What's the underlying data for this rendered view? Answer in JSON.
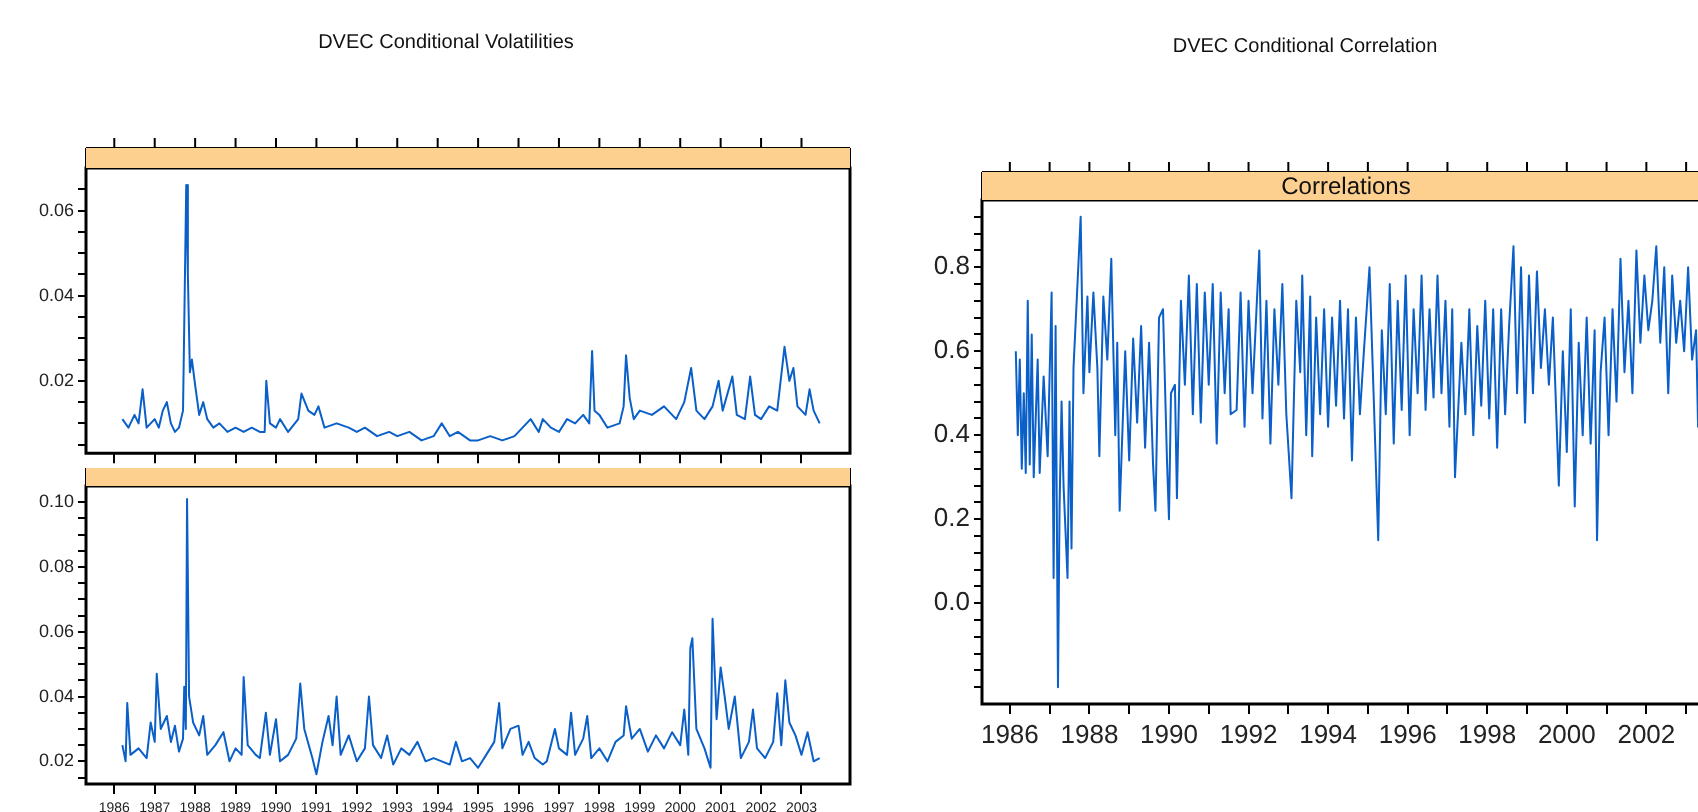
{
  "chart_data": [
    {
      "type": "line",
      "title": "DVEC Conditional Volatilities",
      "tick_labels": "y",
      "xlim": [
        1985.3,
        2004.2
      ],
      "xticks": [
        1986,
        1987,
        1988,
        1989,
        1990,
        1991,
        1992,
        1993,
        1994,
        1995,
        1996,
        1997,
        1998,
        1999,
        2000,
        2001,
        2002,
        2003
      ],
      "ylim": [
        0.003,
        0.07
      ],
      "yticks": [
        {
          "value": 0.005,
          "label": null
        },
        {
          "value": 0.01,
          "label": null
        },
        {
          "value": 0.015,
          "label": null
        },
        0.02,
        {
          "value": 0.025,
          "label": null
        },
        {
          "value": 0.03,
          "label": null
        },
        {
          "value": 0.035,
          "label": null
        },
        0.04,
        {
          "value": 0.045,
          "label": null
        },
        {
          "value": 0.05,
          "label": null
        },
        {
          "value": 0.055,
          "label": null
        },
        0.06,
        {
          "value": 0.065,
          "label": null
        }
      ],
      "series": [
        {
          "color": "#0a5fc8",
          "x": [
            1986.2,
            1986.35,
            1986.5,
            1986.6,
            1986.7,
            1986.8,
            1987.0,
            1987.1,
            1987.2,
            1987.3,
            1987.4,
            1987.5,
            1987.6,
            1987.7,
            1987.78,
            1987.82,
            1987.87,
            1987.92,
            1988.0,
            1988.1,
            1988.2,
            1988.3,
            1988.45,
            1988.6,
            1988.8,
            1989.0,
            1989.2,
            1989.4,
            1989.6,
            1989.72,
            1989.76,
            1989.85,
            1990.0,
            1990.1,
            1990.3,
            1990.55,
            1990.63,
            1990.8,
            1990.95,
            1991.05,
            1991.2,
            1991.5,
            1991.8,
            1992.0,
            1992.2,
            1992.5,
            1992.8,
            1993.0,
            1993.3,
            1993.6,
            1993.9,
            1994.1,
            1994.3,
            1994.5,
            1994.8,
            1995.0,
            1995.3,
            1995.6,
            1995.9,
            1996.1,
            1996.3,
            1996.5,
            1996.6,
            1996.8,
            1997.0,
            1997.2,
            1997.4,
            1997.6,
            1997.75,
            1997.82,
            1997.88,
            1998.0,
            1998.2,
            1998.5,
            1998.6,
            1998.66,
            1998.75,
            1998.85,
            1999.0,
            1999.3,
            1999.6,
            1999.9,
            2000.1,
            2000.27,
            2000.4,
            2000.6,
            2000.8,
            2000.95,
            2001.05,
            2001.29,
            2001.4,
            2001.6,
            2001.73,
            2001.85,
            2002.0,
            2002.2,
            2002.4,
            2002.58,
            2002.7,
            2002.8,
            2002.9,
            2003.0,
            2003.1,
            2003.2,
            2003.3,
            2003.45
          ],
          "values": [
            0.011,
            0.009,
            0.012,
            0.01,
            0.018,
            0.009,
            0.011,
            0.009,
            0.013,
            0.015,
            0.01,
            0.008,
            0.009,
            0.013,
            0.066,
            0.045,
            0.022,
            0.025,
            0.019,
            0.012,
            0.015,
            0.011,
            0.009,
            0.01,
            0.008,
            0.009,
            0.008,
            0.009,
            0.008,
            0.008,
            0.02,
            0.01,
            0.009,
            0.011,
            0.008,
            0.011,
            0.017,
            0.013,
            0.012,
            0.014,
            0.009,
            0.01,
            0.009,
            0.008,
            0.009,
            0.007,
            0.008,
            0.007,
            0.008,
            0.006,
            0.007,
            0.01,
            0.007,
            0.008,
            0.006,
            0.006,
            0.007,
            0.006,
            0.007,
            0.009,
            0.011,
            0.008,
            0.011,
            0.009,
            0.008,
            0.011,
            0.01,
            0.012,
            0.01,
            0.027,
            0.013,
            0.012,
            0.009,
            0.01,
            0.014,
            0.026,
            0.016,
            0.011,
            0.013,
            0.012,
            0.014,
            0.011,
            0.015,
            0.023,
            0.013,
            0.011,
            0.014,
            0.02,
            0.013,
            0.021,
            0.012,
            0.011,
            0.021,
            0.012,
            0.011,
            0.014,
            0.013,
            0.028,
            0.02,
            0.023,
            0.014,
            0.013,
            0.012,
            0.018,
            0.013,
            0.01
          ]
        }
      ]
    },
    {
      "type": "line",
      "xlim": [
        1985.3,
        2004.2
      ],
      "xticks": [
        1986,
        1987,
        1988,
        1989,
        1990,
        1991,
        1992,
        1993,
        1994,
        1995,
        1996,
        1997,
        1998,
        1999,
        2000,
        2001,
        2002,
        2003
      ],
      "ylim": [
        0.013,
        0.105
      ],
      "yticks": [
        {
          "value": 0.015,
          "label": null
        },
        0.02,
        {
          "value": 0.025,
          "label": null
        },
        {
          "value": 0.03,
          "label": null
        },
        {
          "value": 0.035,
          "label": null
        },
        0.04,
        {
          "value": 0.045,
          "label": null
        },
        {
          "value": 0.05,
          "label": null
        },
        {
          "value": 0.055,
          "label": null
        },
        0.06,
        {
          "value": 0.065,
          "label": null
        },
        {
          "value": 0.07,
          "label": null
        },
        {
          "value": 0.075,
          "label": null
        },
        0.08,
        {
          "value": 0.085,
          "label": null
        },
        {
          "value": 0.09,
          "label": null
        },
        {
          "value": 0.095,
          "label": null
        },
        {
          "value": 0.1,
          "label": "0.10"
        }
      ],
      "series": [
        {
          "color": "#0a5fc8",
          "x": [
            1986.2,
            1986.28,
            1986.32,
            1986.4,
            1986.6,
            1986.8,
            1986.9,
            1987.0,
            1987.05,
            1987.15,
            1987.3,
            1987.4,
            1987.5,
            1987.6,
            1987.7,
            1987.73,
            1987.77,
            1987.8,
            1987.85,
            1987.95,
            1988.1,
            1988.2,
            1988.3,
            1988.5,
            1988.7,
            1988.85,
            1989.0,
            1989.15,
            1989.2,
            1989.3,
            1989.5,
            1989.6,
            1989.75,
            1989.85,
            1990.0,
            1990.1,
            1990.3,
            1990.5,
            1990.6,
            1990.7,
            1990.9,
            1991.0,
            1991.15,
            1991.3,
            1991.4,
            1991.5,
            1991.6,
            1991.8,
            1992.0,
            1992.2,
            1992.3,
            1992.4,
            1992.6,
            1992.75,
            1992.9,
            1993.1,
            1993.3,
            1993.5,
            1993.7,
            1993.9,
            1994.1,
            1994.3,
            1994.45,
            1994.6,
            1994.8,
            1995.0,
            1995.2,
            1995.4,
            1995.52,
            1995.6,
            1995.8,
            1996.0,
            1996.1,
            1996.25,
            1996.4,
            1996.6,
            1996.7,
            1996.9,
            1997.0,
            1997.2,
            1997.3,
            1997.4,
            1997.6,
            1997.7,
            1997.8,
            1998.0,
            1998.2,
            1998.4,
            1998.6,
            1998.66,
            1998.8,
            1999.0,
            1999.2,
            1999.4,
            1999.6,
            1999.8,
            2000.0,
            2000.1,
            2000.2,
            2000.25,
            2000.3,
            2000.4,
            2000.6,
            2000.75,
            2000.8,
            2000.9,
            2001.0,
            2001.1,
            2001.2,
            2001.35,
            2001.5,
            2001.7,
            2001.8,
            2001.9,
            2002.1,
            2002.3,
            2002.4,
            2002.5,
            2002.6,
            2002.7,
            2002.85,
            2003.0,
            2003.15,
            2003.3,
            2003.45
          ],
          "values": [
            0.025,
            0.02,
            0.038,
            0.022,
            0.024,
            0.021,
            0.032,
            0.026,
            0.047,
            0.03,
            0.034,
            0.026,
            0.031,
            0.023,
            0.027,
            0.043,
            0.03,
            0.101,
            0.04,
            0.032,
            0.028,
            0.034,
            0.022,
            0.025,
            0.029,
            0.02,
            0.024,
            0.022,
            0.046,
            0.025,
            0.022,
            0.021,
            0.035,
            0.022,
            0.033,
            0.02,
            0.022,
            0.027,
            0.044,
            0.03,
            0.021,
            0.016,
            0.026,
            0.034,
            0.025,
            0.04,
            0.022,
            0.028,
            0.02,
            0.024,
            0.04,
            0.025,
            0.021,
            0.028,
            0.019,
            0.024,
            0.022,
            0.026,
            0.02,
            0.021,
            0.02,
            0.019,
            0.026,
            0.02,
            0.021,
            0.018,
            0.022,
            0.026,
            0.038,
            0.024,
            0.03,
            0.031,
            0.022,
            0.026,
            0.021,
            0.019,
            0.02,
            0.03,
            0.024,
            0.022,
            0.035,
            0.022,
            0.027,
            0.034,
            0.021,
            0.024,
            0.02,
            0.026,
            0.028,
            0.037,
            0.027,
            0.03,
            0.023,
            0.028,
            0.024,
            0.029,
            0.025,
            0.036,
            0.022,
            0.055,
            0.058,
            0.03,
            0.024,
            0.018,
            0.064,
            0.033,
            0.049,
            0.04,
            0.03,
            0.04,
            0.021,
            0.026,
            0.036,
            0.024,
            0.021,
            0.026,
            0.041,
            0.025,
            0.045,
            0.032,
            0.028,
            0.022,
            0.029,
            0.02,
            0.021
          ]
        }
      ]
    },
    {
      "type": "line",
      "title": "DVEC Conditional Correlation",
      "subtitle": "Correlations",
      "xlim": [
        1985.3,
        2003.6
      ],
      "xticks": [
        1986,
        {
          "value": 1987,
          "label": null
        },
        1988,
        {
          "value": 1989,
          "label": null
        },
        1990,
        {
          "value": 1991,
          "label": null
        },
        1992,
        {
          "value": 1993,
          "label": null
        },
        1994,
        {
          "value": 1995,
          "label": null
        },
        1996,
        {
          "value": 1997,
          "label": null
        },
        1998,
        {
          "value": 1999,
          "label": null
        },
        2000,
        {
          "value": 2001,
          "label": null
        },
        2002,
        {
          "value": 2003,
          "label": null
        }
      ],
      "ylim": [
        -0.24,
        0.96
      ],
      "yticks": [
        {
          "value": -0.2,
          "label": null
        },
        {
          "value": -0.16,
          "label": null
        },
        {
          "value": -0.12,
          "label": null
        },
        {
          "value": -0.08,
          "label": null
        },
        {
          "value": -0.04,
          "label": null
        },
        {
          "value": 0,
          "label": "0.0"
        },
        {
          "value": 0.04,
          "label": null
        },
        {
          "value": 0.08,
          "label": null
        },
        {
          "value": 0.12,
          "label": null
        },
        {
          "value": 0.16,
          "label": null
        },
        0.2,
        {
          "value": 0.24,
          "label": null
        },
        {
          "value": 0.28,
          "label": null
        },
        {
          "value": 0.32,
          "label": null
        },
        {
          "value": 0.36,
          "label": null
        },
        0.4,
        {
          "value": 0.44,
          "label": null
        },
        {
          "value": 0.48,
          "label": null
        },
        {
          "value": 0.52,
          "label": null
        },
        {
          "value": 0.56,
          "label": null
        },
        0.6,
        {
          "value": 0.64,
          "label": null
        },
        {
          "value": 0.68,
          "label": null
        },
        {
          "value": 0.72,
          "label": null
        },
        {
          "value": 0.76,
          "label": null
        },
        0.8,
        {
          "value": 0.84,
          "label": null
        },
        {
          "value": 0.88,
          "label": null
        },
        {
          "value": 0.92,
          "label": null
        }
      ],
      "series": [
        {
          "color": "#0a5fc8",
          "x": [
            1986.15,
            1986.2,
            1986.25,
            1986.3,
            1986.35,
            1986.4,
            1986.45,
            1986.5,
            1986.55,
            1986.6,
            1986.7,
            1986.75,
            1986.85,
            1986.95,
            1987.05,
            1987.1,
            1987.15,
            1987.21,
            1987.25,
            1987.3,
            1987.35,
            1987.45,
            1987.5,
            1987.55,
            1987.6,
            1987.7,
            1987.78,
            1987.85,
            1987.95,
            1988.0,
            1988.1,
            1988.2,
            1988.25,
            1988.35,
            1988.45,
            1988.55,
            1988.65,
            1988.7,
            1988.76,
            1988.9,
            1989.0,
            1989.1,
            1989.2,
            1989.3,
            1989.4,
            1989.5,
            1989.6,
            1989.66,
            1989.75,
            1989.85,
            1989.95,
            1990.0,
            1990.05,
            1990.15,
            1990.2,
            1990.3,
            1990.4,
            1990.5,
            1990.6,
            1990.7,
            1990.8,
            1990.9,
            1991.0,
            1991.1,
            1991.2,
            1991.3,
            1991.4,
            1991.5,
            1991.55,
            1991.7,
            1991.8,
            1991.9,
            1992.0,
            1992.1,
            1992.2,
            1992.27,
            1992.35,
            1992.45,
            1992.55,
            1992.65,
            1992.75,
            1992.85,
            1992.95,
            1993.08,
            1993.2,
            1993.3,
            1993.35,
            1993.45,
            1993.55,
            1993.6,
            1993.7,
            1993.8,
            1993.9,
            1994.0,
            1994.1,
            1994.2,
            1994.3,
            1994.4,
            1994.5,
            1994.6,
            1994.7,
            1994.8,
            1994.9,
            1995.04,
            1995.15,
            1995.26,
            1995.35,
            1995.45,
            1995.55,
            1995.65,
            1995.75,
            1995.85,
            1995.95,
            1996.05,
            1996.15,
            1996.25,
            1996.35,
            1996.45,
            1996.55,
            1996.65,
            1996.75,
            1996.85,
            1996.95,
            1997.05,
            1997.12,
            1997.19,
            1997.35,
            1997.45,
            1997.55,
            1997.65,
            1997.75,
            1997.85,
            1997.95,
            1998.05,
            1998.15,
            1998.25,
            1998.35,
            1998.45,
            1998.55,
            1998.66,
            1998.75,
            1998.85,
            1998.95,
            1999.05,
            1999.15,
            1999.25,
            1999.35,
            1999.45,
            1999.55,
            1999.65,
            1999.8,
            1999.9,
            2000.0,
            2000.1,
            2000.2,
            2000.3,
            2000.4,
            2000.5,
            2000.6,
            2000.7,
            2000.76,
            2000.85,
            2000.95,
            2001.05,
            2001.15,
            2001.25,
            2001.35,
            2001.45,
            2001.55,
            2001.65,
            2001.75,
            2001.85,
            2001.95,
            2002.05,
            2002.15,
            2002.25,
            2002.35,
            2002.45,
            2002.55,
            2002.65,
            2002.75,
            2002.85,
            2002.95,
            2003.05,
            2003.15,
            2003.25,
            2003.3,
            2003.35,
            2003.4
          ],
          "values": [
            0.6,
            0.4,
            0.58,
            0.32,
            0.5,
            0.31,
            0.72,
            0.33,
            0.64,
            0.3,
            0.58,
            0.31,
            0.54,
            0.35,
            0.74,
            0.06,
            0.66,
            -0.2,
            0.23,
            0.48,
            0.28,
            0.06,
            0.48,
            0.13,
            0.56,
            0.76,
            0.92,
            0.5,
            0.73,
            0.55,
            0.74,
            0.56,
            0.35,
            0.73,
            0.58,
            0.82,
            0.4,
            0.62,
            0.22,
            0.6,
            0.34,
            0.63,
            0.43,
            0.66,
            0.37,
            0.62,
            0.33,
            0.22,
            0.68,
            0.7,
            0.34,
            0.2,
            0.5,
            0.52,
            0.25,
            0.72,
            0.52,
            0.78,
            0.45,
            0.76,
            0.43,
            0.74,
            0.52,
            0.76,
            0.38,
            0.74,
            0.5,
            0.7,
            0.45,
            0.46,
            0.74,
            0.42,
            0.72,
            0.5,
            0.7,
            0.84,
            0.44,
            0.72,
            0.38,
            0.7,
            0.52,
            0.76,
            0.45,
            0.25,
            0.72,
            0.55,
            0.78,
            0.4,
            0.73,
            0.35,
            0.68,
            0.45,
            0.7,
            0.42,
            0.68,
            0.47,
            0.72,
            0.44,
            0.7,
            0.34,
            0.68,
            0.45,
            0.6,
            0.8,
            0.48,
            0.15,
            0.65,
            0.45,
            0.76,
            0.38,
            0.72,
            0.46,
            0.78,
            0.4,
            0.7,
            0.5,
            0.78,
            0.46,
            0.7,
            0.49,
            0.78,
            0.5,
            0.72,
            0.42,
            0.7,
            0.3,
            0.62,
            0.45,
            0.7,
            0.4,
            0.66,
            0.47,
            0.72,
            0.44,
            0.7,
            0.37,
            0.7,
            0.45,
            0.66,
            0.85,
            0.5,
            0.8,
            0.43,
            0.78,
            0.5,
            0.79,
            0.56,
            0.7,
            0.52,
            0.68,
            0.28,
            0.6,
            0.36,
            0.7,
            0.23,
            0.62,
            0.4,
            0.68,
            0.38,
            0.65,
            0.15,
            0.55,
            0.68,
            0.4,
            0.7,
            0.48,
            0.82,
            0.55,
            0.72,
            0.5,
            0.84,
            0.62,
            0.78,
            0.65,
            0.72,
            0.85,
            0.62,
            0.8,
            0.5,
            0.78,
            0.62,
            0.72,
            0.6,
            0.8,
            0.58,
            0.65,
            0.42,
            0.65,
            0.6
          ]
        }
      ]
    }
  ]
}
